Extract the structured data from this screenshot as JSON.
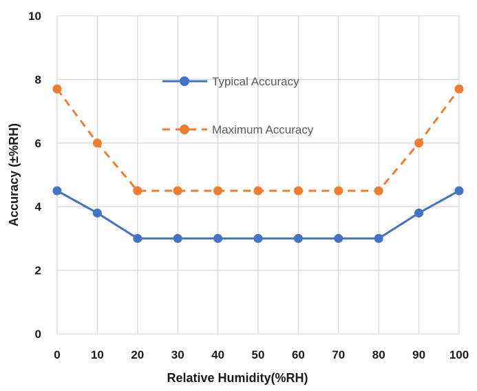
{
  "chart_data": {
    "type": "line",
    "x": [
      0,
      10,
      20,
      30,
      40,
      50,
      60,
      70,
      80,
      90,
      100
    ],
    "xlabel": "Relative Humidity(%RH)",
    "ylabel": "Accuracy (±%RH)",
    "xlim": [
      0,
      100
    ],
    "ylim": [
      0,
      10
    ],
    "x_ticks": [
      "0",
      "10",
      "20",
      "30",
      "40",
      "50",
      "60",
      "70",
      "80",
      "90",
      "100"
    ],
    "y_ticks": [
      "0",
      "2",
      "4",
      "6",
      "8",
      "10"
    ],
    "grid": "vertical and horizontal",
    "legend_position": "upper-center inside plot",
    "series": [
      {
        "name": "Typical Accuracy",
        "values": [
          4.5,
          3.8,
          3.0,
          3.0,
          3.0,
          3.0,
          3.0,
          3.0,
          3.0,
          3.8,
          4.5
        ],
        "color": "#4472C4",
        "line_style": "solid",
        "marker": "circle"
      },
      {
        "name": "Maximum Accuracy",
        "values": [
          7.7,
          6.0,
          4.5,
          4.5,
          4.5,
          4.5,
          4.5,
          4.5,
          4.5,
          6.0,
          7.7
        ],
        "color": "#ED7D31",
        "line_style": "dashed",
        "marker": "circle"
      }
    ]
  },
  "colors": {
    "grid": "#d9d9d9",
    "text": "#1a1a1a",
    "legend_text": "#595959",
    "background": "#ffffff"
  }
}
